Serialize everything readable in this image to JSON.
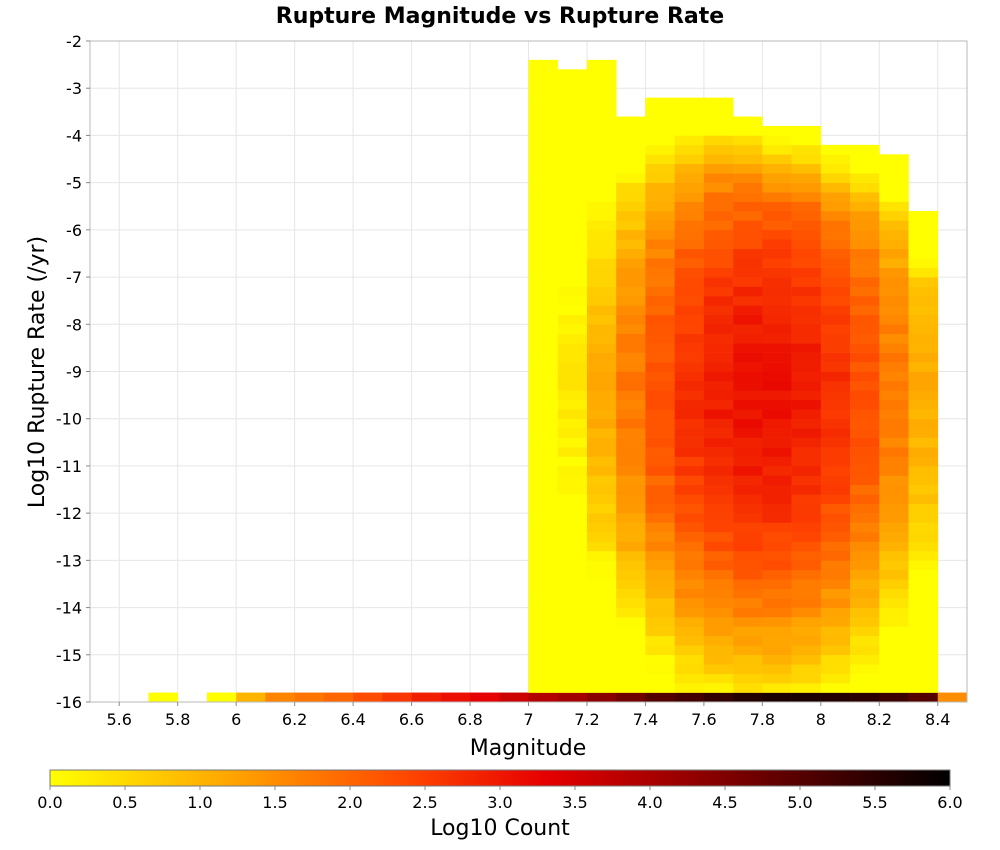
{
  "chart_data": {
    "type": "heatmap",
    "title": "Rupture Magnitude vs Rupture Rate",
    "xlabel": "Magnitude",
    "ylabel": "Log10 Rupture Rate (/yr)",
    "xlim": [
      5.5,
      8.5
    ],
    "ylim": [
      -16,
      -2
    ],
    "x_ticks": [
      "5.6",
      "5.8",
      "6",
      "6.2",
      "6.4",
      "6.6",
      "6.8",
      "7",
      "7.2",
      "7.4",
      "7.6",
      "7.8",
      "8",
      "8.2",
      "8.4"
    ],
    "y_ticks": [
      "-2",
      "-3",
      "-4",
      "-5",
      "-6",
      "-7",
      "-8",
      "-9",
      "-10",
      "-11",
      "-12",
      "-13",
      "-14",
      "-15",
      "-16"
    ],
    "grid": true,
    "x_bin_width": 0.1,
    "y_bin_height": 0.2,
    "bottom_row": {
      "y_range": [
        -16,
        -15.8
      ],
      "x_centers": [
        5.75,
        5.95,
        6.05,
        6.15,
        6.25,
        6.35,
        6.45,
        6.55,
        6.65,
        6.75,
        6.85,
        6.95,
        7.05,
        7.15,
        7.25,
        7.35,
        7.45,
        7.55,
        7.65,
        7.75,
        7.85,
        7.95,
        8.05,
        8.15,
        8.25,
        8.35,
        8.45
      ],
      "log10_count": [
        0.0,
        0.0,
        1.0,
        1.6,
        1.8,
        2.0,
        2.3,
        2.6,
        2.9,
        3.1,
        3.3,
        3.6,
        3.9,
        4.1,
        4.4,
        4.7,
        5.0,
        5.2,
        5.4,
        5.6,
        5.7,
        5.7,
        5.6,
        5.5,
        5.3,
        5.0,
        1.5
      ]
    },
    "columns": [
      {
        "x": 7.05,
        "y_top": -2.4,
        "y_bottom": -15.8
      },
      {
        "x": 7.15,
        "y_top": -2.7,
        "y_bottom": -15.8
      },
      {
        "x": 7.25,
        "y_top": -2.4,
        "y_bottom": -15.8
      },
      {
        "x": 7.35,
        "y_top": -3.6,
        "y_bottom": -15.8
      },
      {
        "x": 7.45,
        "y_top": -3.3,
        "y_bottom": -15.8
      },
      {
        "x": 7.55,
        "y_top": -3.3,
        "y_bottom": -15.8
      },
      {
        "x": 7.65,
        "y_top": -3.3,
        "y_bottom": -15.8
      },
      {
        "x": 7.75,
        "y_top": -3.6,
        "y_bottom": -15.8
      },
      {
        "x": 7.85,
        "y_top": -3.9,
        "y_bottom": -15.8
      },
      {
        "x": 7.95,
        "y_top": -3.9,
        "y_bottom": -15.8
      },
      {
        "x": 8.05,
        "y_top": -4.2,
        "y_bottom": -15.8
      },
      {
        "x": 8.15,
        "y_top": -4.2,
        "y_bottom": -15.8
      },
      {
        "x": 8.25,
        "y_top": -4.5,
        "y_bottom": -15.8
      },
      {
        "x": 8.35,
        "y_top": -5.6,
        "y_bottom": -15.8
      }
    ],
    "peak": {
      "magnitude": 7.8,
      "log10_rate": -9.5,
      "log10_count": 3.1
    },
    "colorbar": {
      "label": "Log10 Count",
      "min": 0.0,
      "max": 6.0,
      "ticks": [
        "0.0",
        "0.5",
        "1.0",
        "1.5",
        "2.0",
        "2.5",
        "3.0",
        "3.5",
        "4.0",
        "4.5",
        "5.0",
        "5.5",
        "6.0"
      ],
      "colors": [
        "#ffff00",
        "#ffa500",
        "#ff4500",
        "#e60000",
        "#800000",
        "#000000"
      ]
    }
  }
}
